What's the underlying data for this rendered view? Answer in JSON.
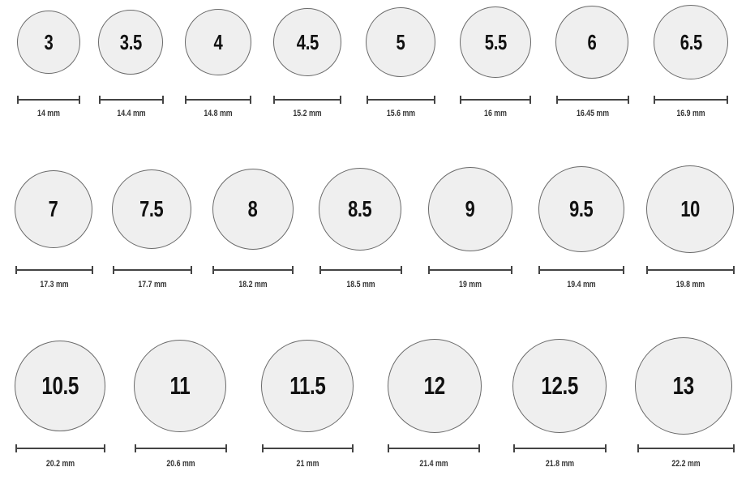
{
  "rings": [
    {
      "size": "3",
      "diameter": "14 mm"
    },
    {
      "size": "3.5",
      "diameter": "14.4 mm"
    },
    {
      "size": "4",
      "diameter": "14.8 mm"
    },
    {
      "size": "4.5",
      "diameter": "15.2 mm"
    },
    {
      "size": "5",
      "diameter": "15.6 mm"
    },
    {
      "size": "5.5",
      "diameter": "16 mm"
    },
    {
      "size": "6",
      "diameter": "16.45 mm"
    },
    {
      "size": "6.5",
      "diameter": "16.9 mm"
    },
    {
      "size": "7",
      "diameter": "17.3 mm"
    },
    {
      "size": "7.5",
      "diameter": "17.7 mm"
    },
    {
      "size": "8",
      "diameter": "18.2 mm"
    },
    {
      "size": "8.5",
      "diameter": "18.5 mm"
    },
    {
      "size": "9",
      "diameter": "19 mm"
    },
    {
      "size": "9.5",
      "diameter": "19.4 mm"
    },
    {
      "size": "10",
      "diameter": "19.8 mm"
    },
    {
      "size": "10.5",
      "diameter": "20.2 mm"
    },
    {
      "size": "11",
      "diameter": "20.6 mm"
    },
    {
      "size": "11.5",
      "diameter": "21 mm"
    },
    {
      "size": "12",
      "diameter": "21.4 mm"
    },
    {
      "size": "12.5",
      "diameter": "21.8 mm"
    },
    {
      "size": "13",
      "diameter": "22.2 mm"
    }
  ],
  "colors": {
    "circle_fill": "#efefef",
    "circle_stroke": "#6a6a6a",
    "text": "#111111"
  }
}
